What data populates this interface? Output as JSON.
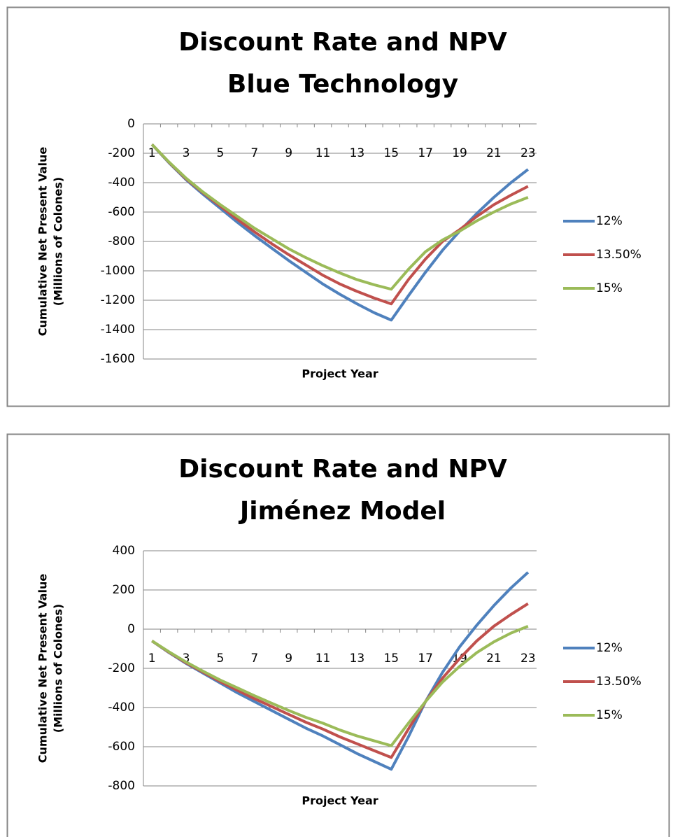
{
  "chart_data": [
    {
      "type": "line",
      "title": "Discount Rate and NPV",
      "subtitle": "Blue Technology",
      "xlabel": "Project Year",
      "ylabel": [
        "Cumulative Net Present Value",
        "(Millions of Colones)"
      ],
      "categories": [
        1,
        null,
        3,
        null,
        5,
        null,
        7,
        null,
        9,
        null,
        11,
        null,
        13,
        null,
        15,
        null,
        17,
        null,
        19,
        null,
        21,
        null,
        23
      ],
      "ylim": [
        -1600,
        0
      ],
      "yticks": [
        -1600,
        -1400,
        -1200,
        -1000,
        -800,
        -600,
        -400,
        -200,
        0
      ],
      "grid": true,
      "legend": "right",
      "series": [
        {
          "name": "12%",
          "color": "#4f81bd",
          "values": [
            -140,
            -265,
            -380,
            -480,
            -575,
            -670,
            -760,
            -845,
            -930,
            -1010,
            -1090,
            -1160,
            -1225,
            -1285,
            -1335,
            -1170,
            -1010,
            -860,
            -730,
            -610,
            -500,
            -400,
            -310
          ]
        },
        {
          "name": "13.50%",
          "color": "#c0504d",
          "values": [
            -140,
            -262,
            -375,
            -470,
            -560,
            -650,
            -735,
            -815,
            -890,
            -960,
            -1030,
            -1090,
            -1140,
            -1185,
            -1225,
            -1060,
            -920,
            -800,
            -720,
            -630,
            -550,
            -485,
            -425
          ]
        },
        {
          "name": "15%",
          "color": "#9bbb59",
          "values": [
            -140,
            -260,
            -370,
            -465,
            -550,
            -630,
            -710,
            -780,
            -850,
            -910,
            -965,
            -1015,
            -1060,
            -1095,
            -1125,
            -990,
            -870,
            -790,
            -730,
            -660,
            -600,
            -545,
            -500
          ]
        }
      ]
    },
    {
      "type": "line",
      "title": "Discount Rate and NPV",
      "subtitle": "Jiménez Model",
      "xlabel": "Project Year",
      "ylabel": [
        "Cumulative Net Present Value",
        "(Millions of Colones)"
      ],
      "categories": [
        1,
        null,
        3,
        null,
        5,
        null,
        7,
        null,
        9,
        null,
        11,
        null,
        13,
        null,
        15,
        null,
        17,
        null,
        19,
        null,
        21,
        null,
        23
      ],
      "ylim": [
        -800,
        400
      ],
      "yticks": [
        -800,
        -600,
        -400,
        -200,
        0,
        200,
        400
      ],
      "grid": true,
      "legend": "right",
      "series": [
        {
          "name": "12%",
          "color": "#4f81bd",
          "values": [
            -60,
            -120,
            -175,
            -225,
            -275,
            -325,
            -370,
            -415,
            -460,
            -505,
            -545,
            -590,
            -635,
            -675,
            -715,
            -550,
            -370,
            -220,
            -90,
            20,
            120,
            210,
            290
          ]
        },
        {
          "name": "13.50%",
          "color": "#c0504d",
          "values": [
            -60,
            -118,
            -172,
            -220,
            -268,
            -312,
            -355,
            -395,
            -435,
            -475,
            -510,
            -550,
            -585,
            -620,
            -655,
            -510,
            -370,
            -250,
            -150,
            -60,
            15,
            75,
            130
          ]
        },
        {
          "name": "15%",
          "color": "#9bbb59",
          "values": [
            -60,
            -116,
            -168,
            -215,
            -260,
            -300,
            -340,
            -378,
            -415,
            -450,
            -480,
            -515,
            -545,
            -570,
            -595,
            -480,
            -370,
            -270,
            -190,
            -120,
            -65,
            -20,
            15
          ]
        }
      ]
    }
  ]
}
